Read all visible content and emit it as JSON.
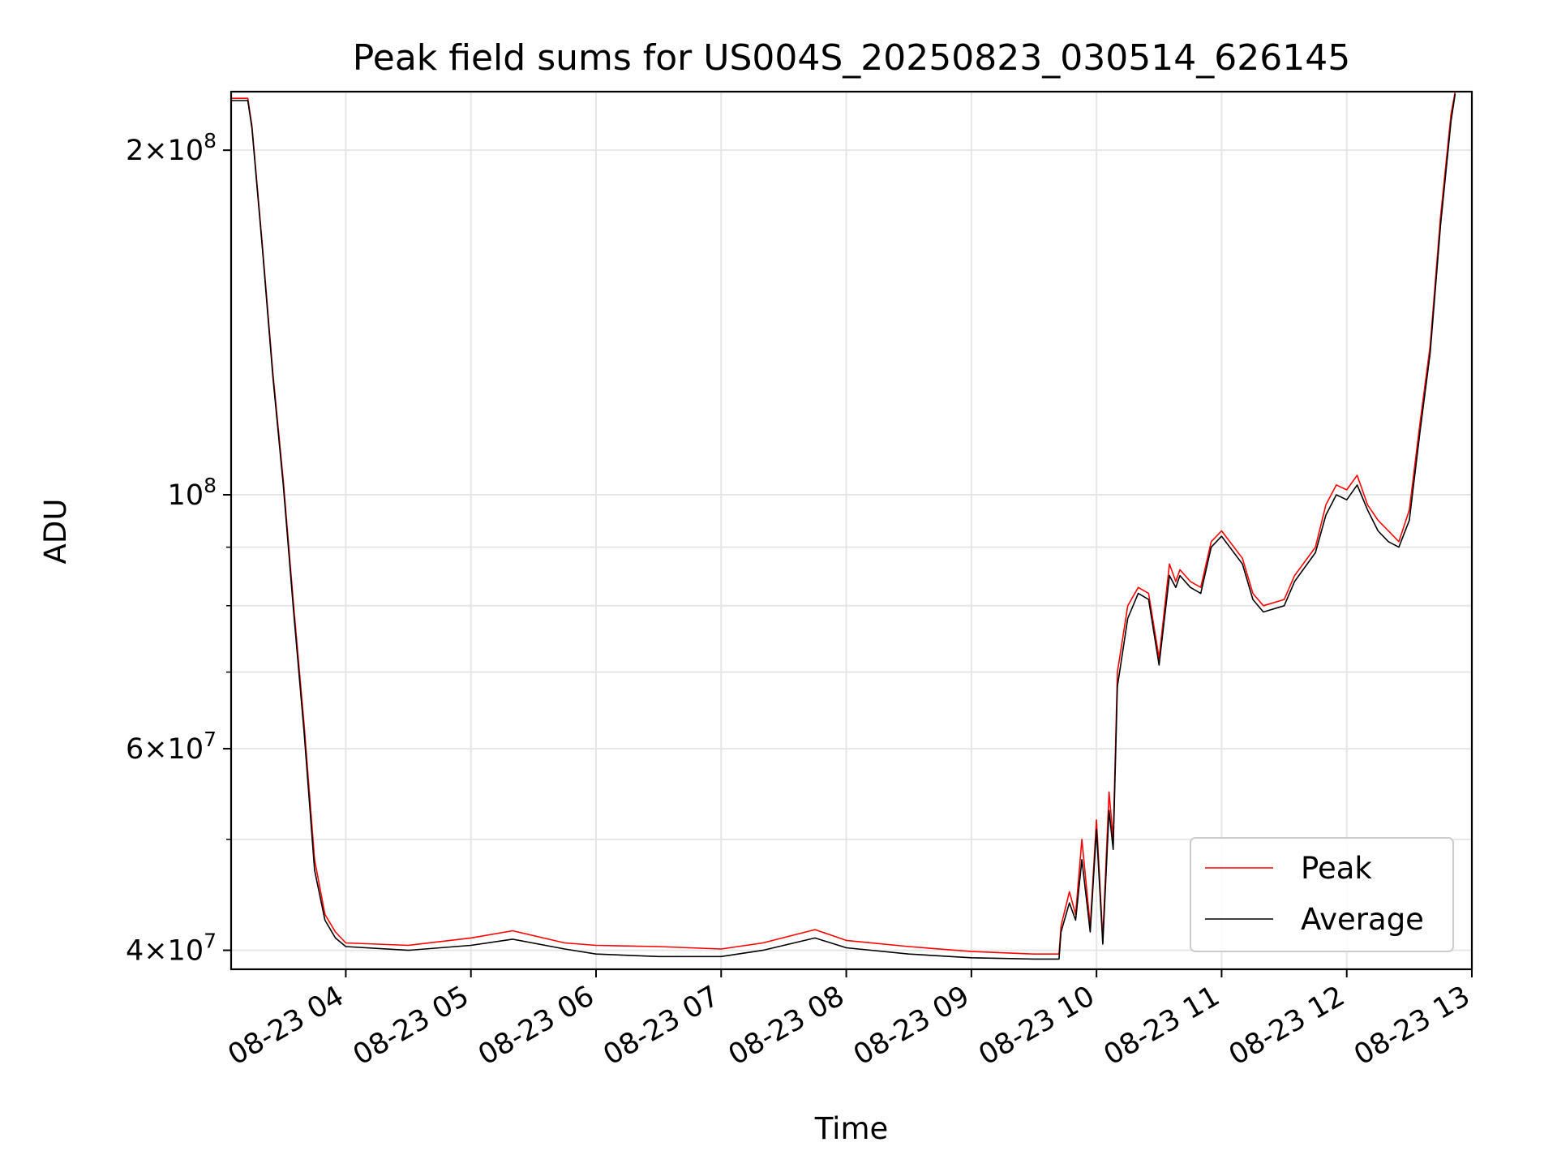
{
  "chart_data": {
    "type": "line",
    "title": "Peak field sums for US004S_20250823_030514_626145",
    "xlabel": "Time",
    "ylabel": "ADU",
    "yscale": "log",
    "xlim": [
      "2025-08-23 03:05",
      "2025-08-23 13:00"
    ],
    "ylim": [
      38500000,
      225000000
    ],
    "x_ticks": [
      "08-23 04",
      "08-23 05",
      "08-23 06",
      "08-23 07",
      "08-23 08",
      "08-23 09",
      "08-23 10",
      "08-23 11",
      "08-23 12",
      "08-23 13"
    ],
    "y_ticks": [
      {
        "value": 40000000,
        "mantissa": "4",
        "exp": "7"
      },
      {
        "value": 60000000,
        "mantissa": "6",
        "exp": "7"
      },
      {
        "value": 100000000,
        "mantissa": "",
        "exp": "8"
      },
      {
        "value": 200000000,
        "mantissa": "2",
        "exp": "8"
      }
    ],
    "y_minor_ticks": [
      50000000,
      70000000,
      80000000,
      90000000
    ],
    "grid": true,
    "legend_position": "bottom-right",
    "x": [
      "03:05",
      "03:13",
      "03:15",
      "03:20",
      "03:25",
      "03:30",
      "03:35",
      "03:40",
      "03:45",
      "03:50",
      "03:55",
      "04:00",
      "04:30",
      "05:00",
      "05:20",
      "05:45",
      "06:00",
      "06:30",
      "07:00",
      "07:20",
      "07:45",
      "08:00",
      "08:30",
      "09:00",
      "09:30",
      "09:42",
      "09:43",
      "09:47",
      "09:50",
      "09:53",
      "09:57",
      "10:00",
      "10:03",
      "10:06",
      "10:08",
      "10:10",
      "10:15",
      "10:20",
      "10:25",
      "10:30",
      "10:35",
      "10:38",
      "10:40",
      "10:45",
      "10:50",
      "10:55",
      "11:00",
      "11:10",
      "11:15",
      "11:20",
      "11:30",
      "11:35",
      "11:45",
      "11:50",
      "11:55",
      "12:00",
      "12:05",
      "12:10",
      "12:15",
      "12:20",
      "12:25",
      "12:30",
      "12:35",
      "12:40",
      "12:45",
      "12:50",
      "12:52"
    ],
    "series": [
      {
        "name": "Peak",
        "color": "#ff0000",
        "values": [
          222000000,
          222000000,
          210000000,
          165000000,
          128000000,
          103000000,
          80000000,
          63000000,
          48000000,
          43000000,
          41500000,
          40600000,
          40400000,
          41000000,
          41600000,
          40600000,
          40400000,
          40300000,
          40100000,
          40600000,
          41700000,
          40800000,
          40300000,
          39900000,
          39700000,
          39700000,
          42000000,
          45000000,
          43000000,
          50000000,
          42000000,
          52000000,
          41000000,
          55000000,
          50000000,
          70000000,
          80000000,
          83000000,
          82000000,
          72000000,
          87000000,
          84000000,
          86000000,
          84000000,
          83000000,
          91000000,
          93000000,
          88000000,
          82000000,
          80000000,
          81000000,
          85000000,
          90000000,
          98000000,
          102000000,
          101000000,
          104000000,
          98000000,
          95000000,
          93000000,
          91000000,
          97000000,
          115000000,
          135000000,
          175000000,
          215000000,
          225000000
        ]
      },
      {
        "name": "Average",
        "color": "#000000",
        "values": [
          221000000,
          221000000,
          209000000,
          164000000,
          127000000,
          102000000,
          79000000,
          62000000,
          47000000,
          42500000,
          41000000,
          40300000,
          40000000,
          40400000,
          40900000,
          40100000,
          39700000,
          39500000,
          39500000,
          40000000,
          41000000,
          40200000,
          39700000,
          39400000,
          39300000,
          39300000,
          41500000,
          44000000,
          42500000,
          48000000,
          41500000,
          51000000,
          40500000,
          53000000,
          49000000,
          68000000,
          78000000,
          82000000,
          81000000,
          71000000,
          85000000,
          83000000,
          85000000,
          83000000,
          82000000,
          90000000,
          92000000,
          87000000,
          81000000,
          79000000,
          80000000,
          84000000,
          89000000,
          96000000,
          100000000,
          99000000,
          102000000,
          97000000,
          93000000,
          91000000,
          90000000,
          95000000,
          113000000,
          133000000,
          172000000,
          212000000,
          224000000
        ]
      }
    ]
  }
}
